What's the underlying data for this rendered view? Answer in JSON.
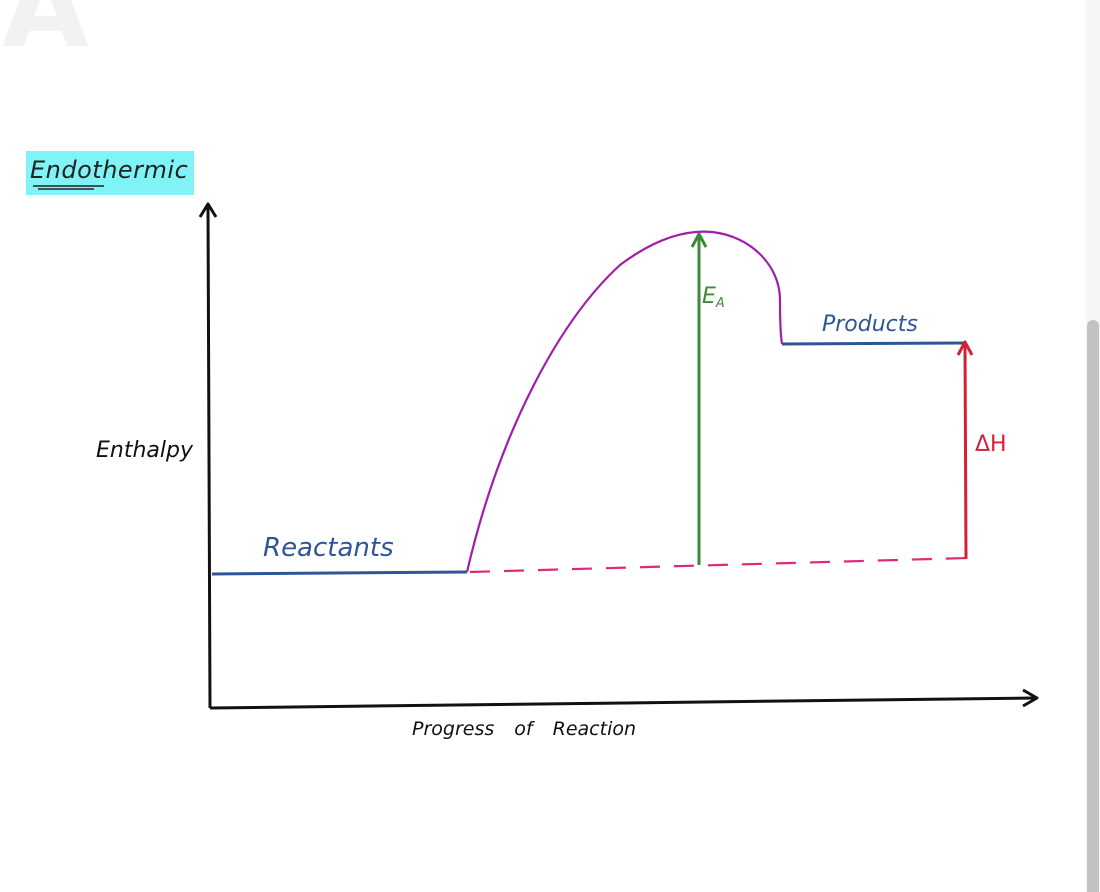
{
  "page": {
    "faded_letter": "A"
  },
  "diagram": {
    "title": "Endothermic",
    "y_axis_label": "Enthalpy",
    "x_axis_label": "Progress of Reaction",
    "reactants_label": "Reactants",
    "products_label": "Products",
    "activation_label_main": "E",
    "activation_label_sub": "A",
    "enthalpy_change_label": "ΔH"
  },
  "colors": {
    "axis": "#111111",
    "curve": "#a01fa8",
    "level": "#2f5597",
    "activation_arrow": "#3d8a3a",
    "enthalpy_arrow": "#d42036",
    "baseline_dashed": "#e0287a",
    "title_highlight": "#7ff3f5"
  }
}
